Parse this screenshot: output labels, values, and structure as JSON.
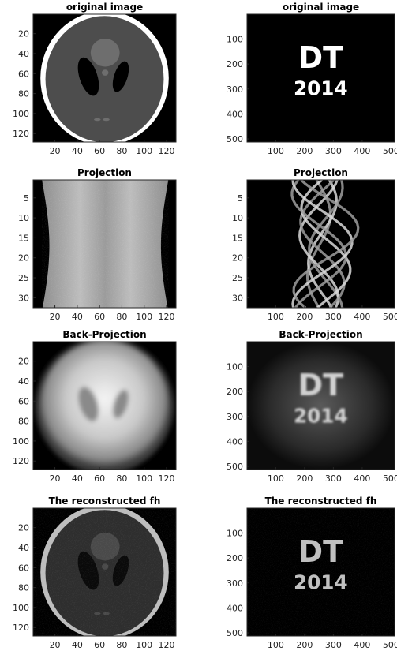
{
  "chart_data": [
    {
      "type": "heatmap",
      "title": "original image",
      "xlabel": "",
      "ylabel": "",
      "content": "phantom",
      "xlim": [
        0.5,
        128.5
      ],
      "ylim": [
        0.5,
        128.5
      ],
      "x_ticks": [
        20,
        40,
        60,
        80,
        100,
        120
      ],
      "y_ticks": [
        20,
        40,
        60,
        80,
        100,
        120
      ],
      "colormap": "gray"
    },
    {
      "type": "heatmap",
      "title": "original image",
      "xlabel": "",
      "ylabel": "",
      "content": "text",
      "text_lines": [
        "DT",
        "2014"
      ],
      "xlim": [
        0.5,
        512.5
      ],
      "ylim": [
        0.5,
        512.5
      ],
      "x_ticks": [
        100,
        200,
        300,
        400,
        500
      ],
      "y_ticks": [
        100,
        200,
        300,
        400,
        500
      ],
      "colormap": "gray"
    },
    {
      "type": "heatmap",
      "title": "Projection",
      "xlabel": "",
      "ylabel": "",
      "content": "sinogram-phantom",
      "xlim": [
        0.5,
        128.5
      ],
      "ylim": [
        0.5,
        32.5
      ],
      "x_ticks": [
        20,
        40,
        60,
        80,
        100,
        120
      ],
      "y_ticks": [
        5,
        10,
        15,
        20,
        25,
        30
      ],
      "colormap": "gray"
    },
    {
      "type": "heatmap",
      "title": "Projection",
      "xlabel": "",
      "ylabel": "",
      "content": "sinogram-text",
      "xlim": [
        0.5,
        512.5
      ],
      "ylim": [
        0.5,
        32.5
      ],
      "x_ticks": [
        100,
        200,
        300,
        400,
        500
      ],
      "y_ticks": [
        5,
        10,
        15,
        20,
        25,
        30
      ],
      "colormap": "gray"
    },
    {
      "type": "heatmap",
      "title": "Back-Projection",
      "xlabel": "",
      "ylabel": "",
      "content": "backprojection-phantom",
      "xlim": [
        0.5,
        128.5
      ],
      "ylim": [
        0.5,
        128.5
      ],
      "x_ticks": [
        20,
        40,
        60,
        80,
        100,
        120
      ],
      "y_ticks": [
        20,
        40,
        60,
        80,
        100,
        120
      ],
      "colormap": "gray"
    },
    {
      "type": "heatmap",
      "title": "Back-Projection",
      "xlabel": "",
      "ylabel": "",
      "content": "backprojection-text",
      "text_lines": [
        "DT",
        "2014"
      ],
      "xlim": [
        0.5,
        512.5
      ],
      "ylim": [
        0.5,
        512.5
      ],
      "x_ticks": [
        100,
        200,
        300,
        400,
        500
      ],
      "y_ticks": [
        100,
        200,
        300,
        400,
        500
      ],
      "colormap": "gray"
    },
    {
      "type": "heatmap",
      "title": "The reconstructed fh",
      "xlabel": "",
      "ylabel": "",
      "content": "reconstructed-phantom",
      "xlim": [
        0.5,
        128.5
      ],
      "ylim": [
        0.5,
        128.5
      ],
      "x_ticks": [
        20,
        40,
        60,
        80,
        100,
        120
      ],
      "y_ticks": [
        20,
        40,
        60,
        80,
        100,
        120
      ],
      "colormap": "gray"
    },
    {
      "type": "heatmap",
      "title": "The reconstructed fh",
      "xlabel": "",
      "ylabel": "",
      "content": "reconstructed-text",
      "text_lines": [
        "DT",
        "2014"
      ],
      "xlim": [
        0.5,
        512.5
      ],
      "ylim": [
        0.5,
        512.5
      ],
      "x_ticks": [
        100,
        200,
        300,
        400,
        500
      ],
      "y_ticks": [
        100,
        200,
        300,
        400,
        500
      ],
      "colormap": "gray"
    }
  ]
}
